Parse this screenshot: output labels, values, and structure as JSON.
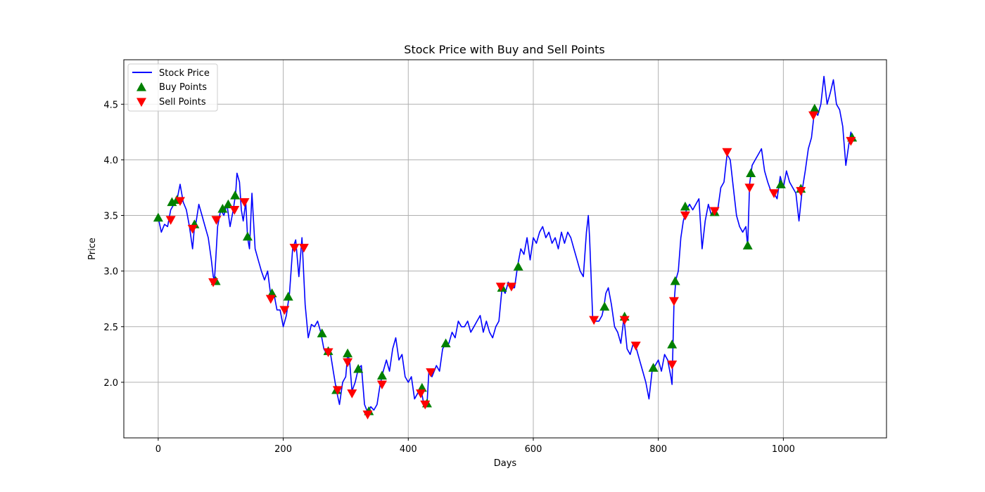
{
  "chart_data": {
    "type": "line",
    "title": "Stock Price with Buy and Sell Points",
    "xlabel": "Days",
    "ylabel": "Price",
    "xlim": [
      -55,
      1165
    ],
    "ylim": [
      1.5,
      4.9
    ],
    "xticks": [
      0,
      200,
      400,
      600,
      800,
      1000
    ],
    "yticks": [
      2.0,
      2.5,
      3.0,
      3.5,
      4.0,
      4.5
    ],
    "xtick_labels": [
      "0",
      "200",
      "400",
      "600",
      "800",
      "1000"
    ],
    "ytick_labels": [
      "2.0",
      "2.5",
      "3.0",
      "3.5",
      "4.0",
      "4.5"
    ],
    "grid": true,
    "legend_position": "top-left",
    "series": [
      {
        "name": "Stock Price",
        "kind": "line",
        "color": "#0000ff",
        "points": [
          [
            0,
            3.48
          ],
          [
            5,
            3.35
          ],
          [
            10,
            3.42
          ],
          [
            15,
            3.4
          ],
          [
            20,
            3.55
          ],
          [
            25,
            3.6
          ],
          [
            30,
            3.64
          ],
          [
            35,
            3.78
          ],
          [
            40,
            3.62
          ],
          [
            45,
            3.55
          ],
          [
            50,
            3.4
          ],
          [
            55,
            3.2
          ],
          [
            58,
            3.4
          ],
          [
            60,
            3.42
          ],
          [
            65,
            3.6
          ],
          [
            70,
            3.5
          ],
          [
            75,
            3.4
          ],
          [
            80,
            3.3
          ],
          [
            85,
            3.1
          ],
          [
            88,
            2.95
          ],
          [
            90,
            2.92
          ],
          [
            92,
            3.1
          ],
          [
            95,
            3.4
          ],
          [
            100,
            3.55
          ],
          [
            105,
            3.5
          ],
          [
            110,
            3.6
          ],
          [
            115,
            3.4
          ],
          [
            120,
            3.55
          ],
          [
            124,
            3.7
          ],
          [
            126,
            3.88
          ],
          [
            130,
            3.8
          ],
          [
            133,
            3.55
          ],
          [
            136,
            3.45
          ],
          [
            140,
            3.62
          ],
          [
            143,
            3.3
          ],
          [
            146,
            3.2
          ],
          [
            150,
            3.7
          ],
          [
            155,
            3.2
          ],
          [
            160,
            3.1
          ],
          [
            165,
            3.0
          ],
          [
            170,
            2.92
          ],
          [
            175,
            3.0
          ],
          [
            180,
            2.78
          ],
          [
            185,
            2.8
          ],
          [
            190,
            2.65
          ],
          [
            195,
            2.65
          ],
          [
            200,
            2.5
          ],
          [
            205,
            2.6
          ],
          [
            210,
            2.8
          ],
          [
            215,
            3.2
          ],
          [
            220,
            3.28
          ],
          [
            225,
            2.95
          ],
          [
            230,
            3.3
          ],
          [
            235,
            2.7
          ],
          [
            240,
            2.4
          ],
          [
            245,
            2.52
          ],
          [
            250,
            2.5
          ],
          [
            255,
            2.55
          ],
          [
            260,
            2.45
          ],
          [
            265,
            2.3
          ],
          [
            270,
            2.25
          ],
          [
            275,
            2.28
          ],
          [
            280,
            2.1
          ],
          [
            285,
            1.93
          ],
          [
            290,
            1.8
          ],
          [
            295,
            2.0
          ],
          [
            300,
            2.05
          ],
          [
            303,
            2.25
          ],
          [
            306,
            2.2
          ],
          [
            310,
            1.92
          ],
          [
            315,
            2.0
          ],
          [
            320,
            2.12
          ],
          [
            325,
            2.15
          ],
          [
            330,
            1.8
          ],
          [
            335,
            1.73
          ],
          [
            340,
            1.78
          ],
          [
            345,
            1.75
          ],
          [
            350,
            1.8
          ],
          [
            355,
            1.98
          ],
          [
            360,
            2.1
          ],
          [
            365,
            2.2
          ],
          [
            370,
            2.1
          ],
          [
            375,
            2.3
          ],
          [
            380,
            2.4
          ],
          [
            385,
            2.2
          ],
          [
            390,
            2.25
          ],
          [
            395,
            2.05
          ],
          [
            400,
            2.0
          ],
          [
            405,
            2.05
          ],
          [
            410,
            1.85
          ],
          [
            415,
            1.9
          ],
          [
            420,
            1.95
          ],
          [
            425,
            1.8
          ],
          [
            430,
            1.8
          ],
          [
            433,
            2.1
          ],
          [
            438,
            2.05
          ],
          [
            445,
            2.15
          ],
          [
            450,
            2.1
          ],
          [
            455,
            2.3
          ],
          [
            460,
            2.35
          ],
          [
            465,
            2.35
          ],
          [
            470,
            2.45
          ],
          [
            475,
            2.4
          ],
          [
            480,
            2.55
          ],
          [
            485,
            2.5
          ],
          [
            490,
            2.5
          ],
          [
            495,
            2.55
          ],
          [
            500,
            2.45
          ],
          [
            505,
            2.5
          ],
          [
            510,
            2.55
          ],
          [
            515,
            2.6
          ],
          [
            520,
            2.45
          ],
          [
            525,
            2.55
          ],
          [
            530,
            2.45
          ],
          [
            535,
            2.4
          ],
          [
            540,
            2.5
          ],
          [
            545,
            2.55
          ],
          [
            550,
            2.85
          ],
          [
            555,
            2.8
          ],
          [
            560,
            2.9
          ],
          [
            565,
            2.85
          ],
          [
            570,
            2.85
          ],
          [
            575,
            3.05
          ],
          [
            580,
            3.2
          ],
          [
            585,
            3.15
          ],
          [
            590,
            3.3
          ],
          [
            595,
            3.1
          ],
          [
            600,
            3.3
          ],
          [
            605,
            3.25
          ],
          [
            610,
            3.35
          ],
          [
            615,
            3.4
          ],
          [
            620,
            3.3
          ],
          [
            625,
            3.35
          ],
          [
            630,
            3.25
          ],
          [
            635,
            3.3
          ],
          [
            640,
            3.2
          ],
          [
            645,
            3.35
          ],
          [
            650,
            3.25
          ],
          [
            655,
            3.35
          ],
          [
            660,
            3.3
          ],
          [
            665,
            3.2
          ],
          [
            670,
            3.1
          ],
          [
            675,
            3.0
          ],
          [
            680,
            2.95
          ],
          [
            685,
            3.35
          ],
          [
            688,
            3.5
          ],
          [
            690,
            3.3
          ],
          [
            695,
            2.58
          ],
          [
            700,
            2.55
          ],
          [
            705,
            2.55
          ],
          [
            710,
            2.6
          ],
          [
            713,
            2.68
          ],
          [
            716,
            2.8
          ],
          [
            720,
            2.85
          ],
          [
            725,
            2.7
          ],
          [
            730,
            2.5
          ],
          [
            735,
            2.45
          ],
          [
            740,
            2.35
          ],
          [
            745,
            2.58
          ],
          [
            750,
            2.3
          ],
          [
            755,
            2.25
          ],
          [
            760,
            2.35
          ],
          [
            765,
            2.3
          ],
          [
            770,
            2.2
          ],
          [
            775,
            2.1
          ],
          [
            780,
            2.0
          ],
          [
            785,
            1.85
          ],
          [
            790,
            2.1
          ],
          [
            795,
            2.15
          ],
          [
            800,
            2.2
          ],
          [
            805,
            2.1
          ],
          [
            810,
            2.25
          ],
          [
            815,
            2.2
          ],
          [
            820,
            2.05
          ],
          [
            822,
            1.98
          ],
          [
            825,
            2.7
          ],
          [
            828,
            2.92
          ],
          [
            832,
            3.0
          ],
          [
            836,
            3.3
          ],
          [
            840,
            3.45
          ],
          [
            845,
            3.55
          ],
          [
            850,
            3.6
          ],
          [
            855,
            3.55
          ],
          [
            860,
            3.6
          ],
          [
            865,
            3.65
          ],
          [
            870,
            3.2
          ],
          [
            875,
            3.45
          ],
          [
            880,
            3.6
          ],
          [
            885,
            3.5
          ],
          [
            890,
            3.55
          ],
          [
            895,
            3.55
          ],
          [
            900,
            3.75
          ],
          [
            905,
            3.8
          ],
          [
            910,
            4.05
          ],
          [
            915,
            4.0
          ],
          [
            920,
            3.75
          ],
          [
            925,
            3.5
          ],
          [
            930,
            3.4
          ],
          [
            935,
            3.35
          ],
          [
            940,
            3.4
          ],
          [
            943,
            3.22
          ],
          [
            946,
            3.78
          ],
          [
            950,
            3.95
          ],
          [
            955,
            4.0
          ],
          [
            960,
            4.05
          ],
          [
            965,
            4.1
          ],
          [
            970,
            3.9
          ],
          [
            975,
            3.8
          ],
          [
            980,
            3.72
          ],
          [
            985,
            3.7
          ],
          [
            990,
            3.65
          ],
          [
            995,
            3.85
          ],
          [
            1000,
            3.75
          ],
          [
            1005,
            3.9
          ],
          [
            1010,
            3.8
          ],
          [
            1015,
            3.75
          ],
          [
            1020,
            3.7
          ],
          [
            1025,
            3.45
          ],
          [
            1030,
            3.72
          ],
          [
            1035,
            3.9
          ],
          [
            1040,
            4.1
          ],
          [
            1045,
            4.2
          ],
          [
            1050,
            4.45
          ],
          [
            1055,
            4.4
          ],
          [
            1060,
            4.5
          ],
          [
            1065,
            4.75
          ],
          [
            1070,
            4.5
          ],
          [
            1075,
            4.6
          ],
          [
            1080,
            4.72
          ],
          [
            1085,
            4.5
          ],
          [
            1090,
            4.45
          ],
          [
            1095,
            4.3
          ],
          [
            1100,
            3.95
          ],
          [
            1105,
            4.15
          ],
          [
            1108,
            4.25
          ],
          [
            1110,
            4.2
          ]
        ]
      },
      {
        "name": "Buy Points",
        "kind": "marker",
        "marker": "triangle-up",
        "color": "#008000",
        "points": [
          [
            0,
            3.48
          ],
          [
            22,
            3.62
          ],
          [
            30,
            3.64
          ],
          [
            58,
            3.42
          ],
          [
            92,
            2.91
          ],
          [
            103,
            3.56
          ],
          [
            112,
            3.6
          ],
          [
            123,
            3.68
          ],
          [
            143,
            3.31
          ],
          [
            182,
            2.8
          ],
          [
            208,
            2.77
          ],
          [
            262,
            2.44
          ],
          [
            272,
            2.28
          ],
          [
            285,
            1.93
          ],
          [
            303,
            2.26
          ],
          [
            320,
            2.12
          ],
          [
            337,
            1.74
          ],
          [
            358,
            2.06
          ],
          [
            422,
            1.95
          ],
          [
            430,
            1.81
          ],
          [
            460,
            2.35
          ],
          [
            550,
            2.85
          ],
          [
            576,
            3.04
          ],
          [
            714,
            2.68
          ],
          [
            746,
            2.59
          ],
          [
            792,
            2.13
          ],
          [
            822,
            2.34
          ],
          [
            827,
            2.91
          ],
          [
            843,
            3.58
          ],
          [
            890,
            3.53
          ],
          [
            943,
            3.23
          ],
          [
            948,
            3.88
          ],
          [
            996,
            3.78
          ],
          [
            1028,
            3.74
          ],
          [
            1050,
            4.46
          ],
          [
            1110,
            4.2
          ]
        ]
      },
      {
        "name": "Sell Points",
        "kind": "marker",
        "marker": "triangle-down",
        "color": "#ff0000",
        "points": [
          [
            20,
            3.46
          ],
          [
            35,
            3.63
          ],
          [
            55,
            3.38
          ],
          [
            88,
            2.9
          ],
          [
            93,
            3.46
          ],
          [
            122,
            3.55
          ],
          [
            138,
            3.62
          ],
          [
            180,
            2.75
          ],
          [
            202,
            2.65
          ],
          [
            218,
            3.21
          ],
          [
            233,
            3.21
          ],
          [
            272,
            2.27
          ],
          [
            287,
            1.93
          ],
          [
            303,
            2.18
          ],
          [
            310,
            1.9
          ],
          [
            335,
            1.71
          ],
          [
            358,
            1.98
          ],
          [
            420,
            1.9
          ],
          [
            427,
            1.8
          ],
          [
            436,
            2.09
          ],
          [
            548,
            2.86
          ],
          [
            565,
            2.86
          ],
          [
            697,
            2.56
          ],
          [
            746,
            2.56
          ],
          [
            764,
            2.33
          ],
          [
            822,
            2.16
          ],
          [
            825,
            2.73
          ],
          [
            843,
            3.5
          ],
          [
            890,
            3.54
          ],
          [
            910,
            4.07
          ],
          [
            946,
            3.75
          ],
          [
            985,
            3.7
          ],
          [
            1028,
            3.72
          ],
          [
            1048,
            4.4
          ],
          [
            1108,
            4.17
          ]
        ]
      }
    ]
  },
  "colors": {
    "line": "#0000ff",
    "buy": "#008000",
    "sell": "#ff0000",
    "grid": "#b0b0b0",
    "axis": "#000000"
  }
}
